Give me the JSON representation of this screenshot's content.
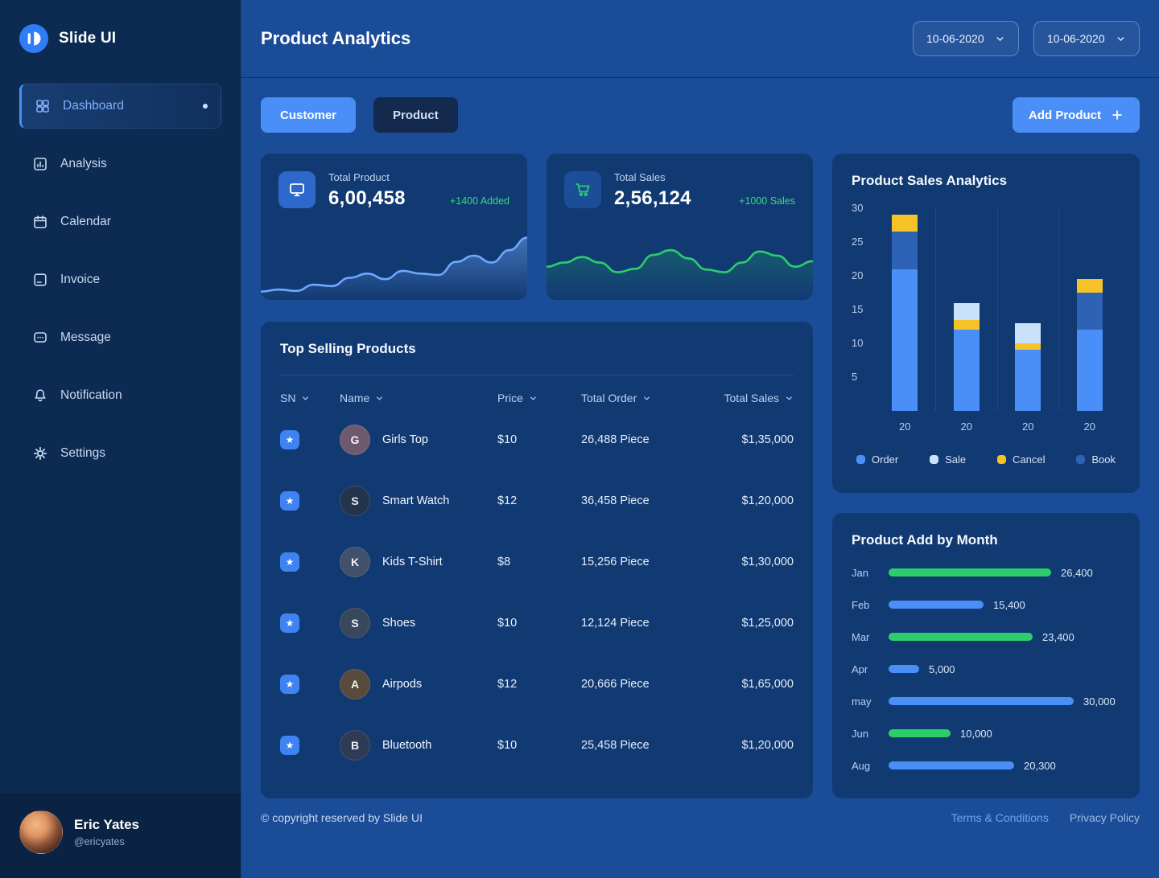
{
  "app": {
    "name": "Slide UI"
  },
  "header": {
    "title": "Product Analytics",
    "date_range_start": "10-06-2020",
    "date_range_end": "10-06-2020"
  },
  "sidebar": {
    "items": [
      {
        "label": "Dashboard",
        "icon": "dashboard",
        "active": true
      },
      {
        "label": "Analysis",
        "icon": "analysis",
        "active": false
      },
      {
        "label": "Calendar",
        "icon": "calendar",
        "active": false
      },
      {
        "label": "Invoice",
        "icon": "invoice",
        "active": false
      },
      {
        "label": "Message",
        "icon": "message",
        "active": false
      },
      {
        "label": "Notification",
        "icon": "notification",
        "active": false
      },
      {
        "label": "Settings",
        "icon": "settings",
        "active": false
      }
    ],
    "user": {
      "name": "Eric Yates",
      "handle": "@ericyates"
    }
  },
  "tabs": [
    {
      "label": "Customer",
      "active": true
    },
    {
      "label": "Product",
      "active": false
    }
  ],
  "actions": {
    "add_product": "Add Product"
  },
  "stat_cards": [
    {
      "label": "Total Product",
      "value": "6,00,458",
      "delta": "+1400 Added",
      "icon": "product",
      "accent": "#6FA8FF",
      "spark": [
        0.88,
        0.85,
        0.87,
        0.78,
        0.8,
        0.68,
        0.62,
        0.7,
        0.58,
        0.62,
        0.64,
        0.45,
        0.36,
        0.46,
        0.28,
        0.1
      ]
    },
    {
      "label": "Total Sales",
      "value": "2,56,124",
      "delta": "+1000 Sales",
      "icon": "cart",
      "accent": "#2BCE6B",
      "spark": [
        0.52,
        0.46,
        0.38,
        0.46,
        0.6,
        0.55,
        0.35,
        0.28,
        0.4,
        0.56,
        0.6,
        0.46,
        0.3,
        0.36,
        0.52,
        0.44
      ]
    }
  ],
  "table": {
    "title": "Top Selling Products",
    "columns": [
      "SN",
      "Name",
      "Price",
      "Total Order",
      "Total Sales"
    ],
    "rows": [
      {
        "initial": "G",
        "name": "Girls Top",
        "price": "$10",
        "order": "26,488 Piece",
        "sales": "$1,35,000",
        "avatar_color": "#6E5A6E"
      },
      {
        "initial": "S",
        "name": "Smart Watch",
        "price": "$12",
        "order": "36,458 Piece",
        "sales": "$1,20,000",
        "avatar_color": "#23354C"
      },
      {
        "initial": "K",
        "name": "Kids T-Shirt",
        "price": "$8",
        "order": "15,256 Piece",
        "sales": "$1,30,000",
        "avatar_color": "#41506B"
      },
      {
        "initial": "S",
        "name": "Shoes",
        "price": "$10",
        "order": "12,124 Piece",
        "sales": "$1,25,000",
        "avatar_color": "#37475C"
      },
      {
        "initial": "A",
        "name": "Airpods",
        "price": "$12",
        "order": "20,666 Piece",
        "sales": "$1,65,000",
        "avatar_color": "#584A3C"
      },
      {
        "initial": "B",
        "name": "Bluetooth",
        "price": "$10",
        "order": "25,458 Piece",
        "sales": "$1,20,000",
        "avatar_color": "#2E3B55"
      }
    ]
  },
  "chart_data": [
    {
      "type": "bar",
      "stacked": true,
      "title": "Product Sales Analytics",
      "categories": [
        "20",
        "20",
        "20",
        "20"
      ],
      "yticks": [
        5,
        10,
        15,
        20,
        25,
        30
      ],
      "ylim": [
        0,
        30
      ],
      "legend_position": "bottom",
      "legend": [
        {
          "name": "Order",
          "color": "#4A8FF7"
        },
        {
          "name": "Sale",
          "color": "#C9E2FB"
        },
        {
          "name": "Cancel",
          "color": "#F5C227"
        },
        {
          "name": "Book",
          "color": "#2E62B5"
        }
      ],
      "stacks": [
        [
          [
            "Order",
            21
          ],
          [
            "Book",
            5.5
          ],
          [
            "Cancel",
            2.5
          ]
        ],
        [
          [
            "Order",
            12
          ],
          [
            "Cancel",
            1.5
          ],
          [
            "Sale",
            2.5
          ]
        ],
        [
          [
            "Order",
            9
          ],
          [
            "Cancel",
            1
          ],
          [
            "Sale",
            3
          ]
        ],
        [
          [
            "Order",
            12
          ],
          [
            "Book",
            5.5
          ],
          [
            "Cancel",
            2
          ]
        ]
      ]
    },
    {
      "type": "bar",
      "orientation": "horizontal",
      "title": "Product Add by Month",
      "categories": [
        "Jan",
        "Feb",
        "Mar",
        "Apr",
        "may",
        "Jun",
        "Aug"
      ],
      "values": [
        26400,
        15400,
        23400,
        5000,
        30000,
        10000,
        20300
      ],
      "labels": [
        "26,400",
        "15,400",
        "23,400",
        "5,000",
        "30,000",
        "10,000",
        "20,300"
      ],
      "colors": [
        "#2BCE6B",
        "#4A8FF7",
        "#2BCE6B",
        "#4A8FF7",
        "#4A8FF7",
        "#2BCE6B",
        "#4A8FF7"
      ],
      "xmax": 30000
    }
  ],
  "footer": {
    "copyright": "© copyright reserved by Slide UI",
    "links": [
      "Terms & Conditions",
      "Privacy Policy"
    ]
  },
  "colors": {
    "accent_blue": "#4A8FF7",
    "positive_green": "#37D97F",
    "cancel_yellow": "#F5C227",
    "bar_green": "#2BCE6B"
  }
}
